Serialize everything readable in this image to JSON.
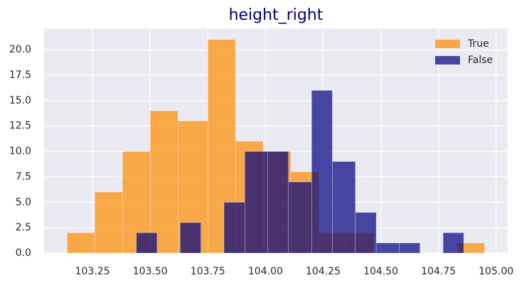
{
  "chart_data": {
    "type": "histogram",
    "title": "height_right",
    "series": [
      {
        "name": "True",
        "color": "#ff8c00",
        "alpha": 0.7,
        "bins": [
          103.14,
          103.26,
          103.38,
          103.5,
          103.62,
          103.75,
          103.87,
          103.99,
          104.11,
          104.23,
          104.35,
          104.47,
          104.59,
          104.71,
          104.83,
          104.95
        ],
        "values": [
          2,
          6,
          10,
          14,
          13,
          21,
          11,
          10,
          8,
          2,
          2,
          0,
          0,
          0,
          1
        ]
      },
      {
        "name": "False",
        "color": "#000080",
        "alpha": 0.7,
        "bins": [
          103.44,
          103.53,
          103.63,
          103.72,
          103.82,
          103.91,
          104.01,
          104.1,
          104.2,
          104.29,
          104.39,
          104.48,
          104.58,
          104.67,
          104.77,
          104.86
        ],
        "values": [
          2,
          0,
          3,
          0,
          5,
          10,
          10,
          7,
          16,
          9,
          4,
          1,
          1,
          0,
          2
        ]
      }
    ],
    "xlim": [
      103.04,
      105.05
    ],
    "xticks": [
      103.25,
      {
        "value": 103.5,
        "label": "103.50"
      },
      103.75,
      {
        "value": 104,
        "label": "104.00"
      },
      104.25,
      {
        "value": 104.5,
        "label": "104.50"
      },
      104.75,
      {
        "value": 105,
        "label": "105.00"
      }
    ],
    "ylim": [
      0,
      22.1
    ],
    "yticks": [
      {
        "value": 0,
        "label": "0.0"
      },
      2.5,
      {
        "value": 5,
        "label": "5.0"
      },
      7.5,
      {
        "value": 10,
        "label": "10.0"
      },
      12.5,
      {
        "value": 15,
        "label": "15.0"
      },
      17.5,
      {
        "value": 20,
        "label": "20.0"
      }
    ],
    "grid": true,
    "legend": "upper-right"
  }
}
